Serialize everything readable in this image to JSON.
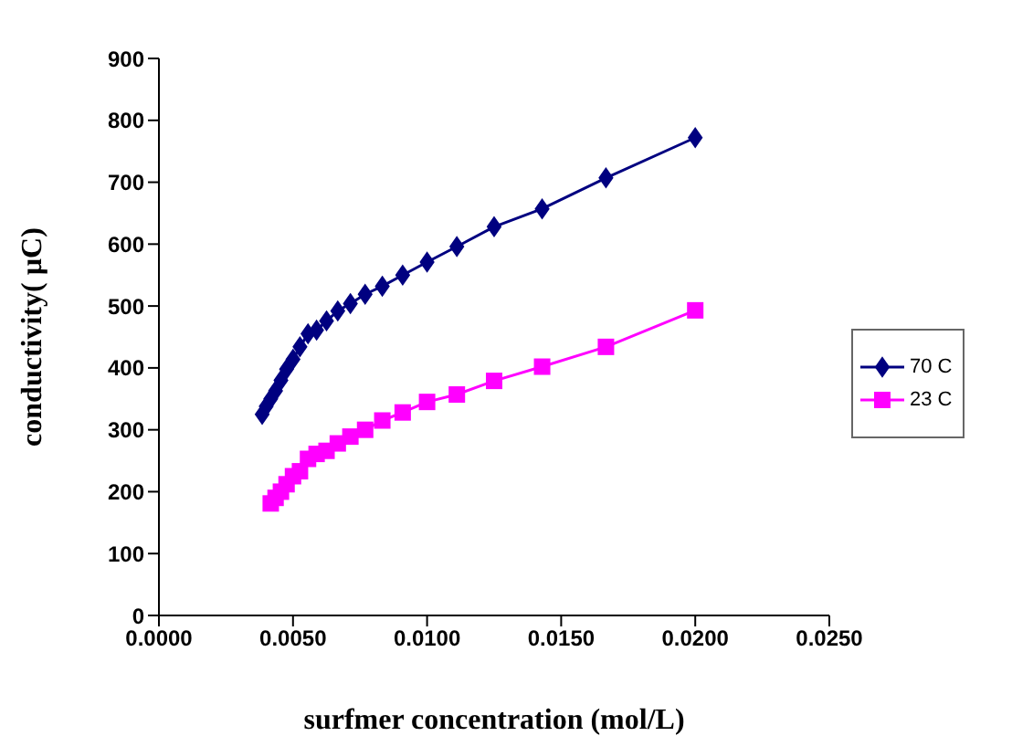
{
  "chart_data": {
    "type": "line",
    "xlabel": "surfmer concentration (mol/L)",
    "ylabel": "conductivity( µC)",
    "xlim": [
      0,
      0.025
    ],
    "xticks": [
      {
        "value": 0,
        "label": "0.0000"
      },
      {
        "value": 0.005,
        "label": "0.0050"
      },
      {
        "value": 0.01,
        "label": "0.0100"
      },
      {
        "value": 0.015,
        "label": "0.0150"
      },
      {
        "value": 0.02,
        "label": "0.0200"
      },
      {
        "value": 0.025,
        "label": "0.0250"
      }
    ],
    "ylim": [
      0,
      900
    ],
    "yticks": [
      0,
      100,
      200,
      300,
      400,
      500,
      600,
      700,
      800,
      900
    ],
    "grid": false,
    "legend": "right",
    "series": [
      {
        "name": "70 C",
        "color": "#000080",
        "marker": "diamond",
        "x": [
          0.02,
          0.01667,
          0.01429,
          0.0125,
          0.01111,
          0.01,
          0.00909,
          0.00833,
          0.00769,
          0.00714,
          0.00667,
          0.00625,
          0.00588,
          0.00556,
          0.00526,
          0.005,
          0.00476,
          0.00455,
          0.00435,
          0.00417,
          0.004,
          0.00385
        ],
        "values": [
          772,
          707,
          657,
          628,
          596,
          571,
          550,
          532,
          519,
          504,
          492,
          476,
          461,
          455,
          434,
          414,
          398,
          380,
          363,
          350,
          338,
          325
        ]
      },
      {
        "name": "23 C",
        "color": "#ff00ff",
        "marker": "square",
        "x": [
          0.02,
          0.01667,
          0.01429,
          0.0125,
          0.01111,
          0.01,
          0.00909,
          0.00833,
          0.00769,
          0.00714,
          0.00667,
          0.00625,
          0.00588,
          0.00556,
          0.00526,
          0.005,
          0.00476,
          0.00455,
          0.00435,
          0.00417
        ],
        "values": [
          493,
          434,
          402,
          379,
          357,
          345,
          328,
          315,
          300,
          289,
          278,
          266,
          261,
          253,
          233,
          225,
          212,
          200,
          190,
          181
        ]
      }
    ]
  }
}
